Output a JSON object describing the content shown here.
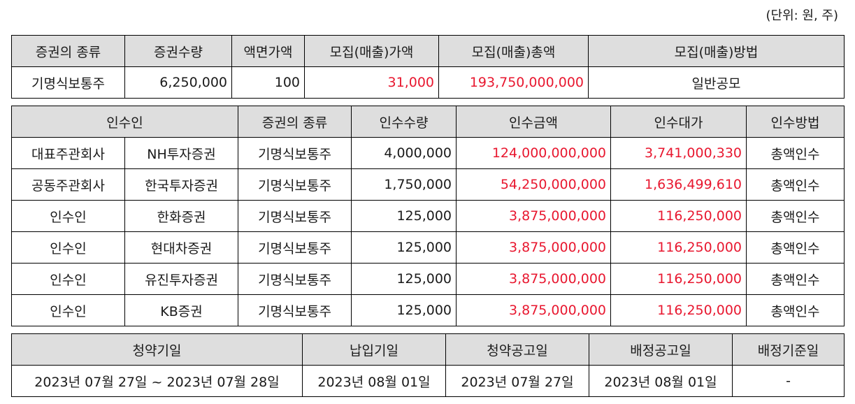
{
  "unit_note": "(단위: 원, 주)",
  "offering": {
    "headers": [
      "증권의 종류",
      "증권수량",
      "액면가액",
      "모집(매출)가액",
      "모집(매출)총액",
      "모집(매출)방법"
    ],
    "row": {
      "type": "기명식보통주",
      "quantity": "6,250,000",
      "par_value": "100",
      "price": "31,000",
      "total": "193,750,000,000",
      "method": "일반공모"
    }
  },
  "underwriters": {
    "headers": [
      "인수인",
      "증권의 종류",
      "인수수량",
      "인수금액",
      "인수대가",
      "인수방법"
    ],
    "rows": [
      {
        "role": "대표주관회사",
        "name": "NH투자증권",
        "type": "기명식보통주",
        "qty": "4,000,000",
        "amount": "124,000,000,000",
        "fee": "3,741,000,330",
        "method": "총액인수"
      },
      {
        "role": "공동주관회사",
        "name": "한국투자증권",
        "type": "기명식보통주",
        "qty": "1,750,000",
        "amount": "54,250,000,000",
        "fee": "1,636,499,610",
        "method": "총액인수"
      },
      {
        "role": "인수인",
        "name": "한화증권",
        "type": "기명식보통주",
        "qty": "125,000",
        "amount": "3,875,000,000",
        "fee": "116,250,000",
        "method": "총액인수"
      },
      {
        "role": "인수인",
        "name": "현대차증권",
        "type": "기명식보통주",
        "qty": "125,000",
        "amount": "3,875,000,000",
        "fee": "116,250,000",
        "method": "총액인수"
      },
      {
        "role": "인수인",
        "name": "유진투자증권",
        "type": "기명식보통주",
        "qty": "125,000",
        "amount": "3,875,000,000",
        "fee": "116,250,000",
        "method": "총액인수"
      },
      {
        "role": "인수인",
        "name": "KB증권",
        "type": "기명식보통주",
        "qty": "125,000",
        "amount": "3,875,000,000",
        "fee": "116,250,000",
        "method": "총액인수"
      }
    ]
  },
  "schedule": {
    "headers": [
      "청약기일",
      "납입기일",
      "청약공고일",
      "배정공고일",
      "배정기준일"
    ],
    "row": {
      "subscription": "2023년 07월 27일 ~ 2023년 07월 28일",
      "payment": "2023년 08월 01일",
      "subscription_notice": "2023년 07월 27일",
      "allotment_notice": "2023년 08월 01일",
      "allotment_base": "-"
    }
  }
}
